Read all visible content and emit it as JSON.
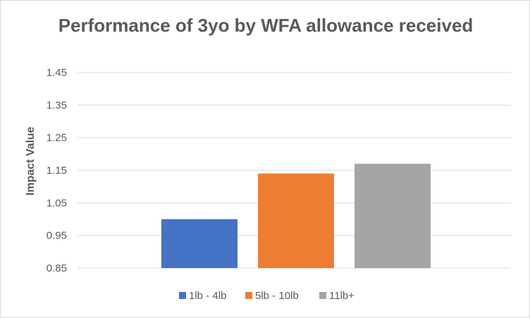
{
  "chart_data": {
    "type": "bar",
    "title": "Performance of 3yo by WFA allowance received",
    "ylabel": "Impact Value",
    "xlabel": "",
    "ylim": [
      0.85,
      1.45
    ],
    "yticks": [
      "1.45",
      "1.35",
      "1.25",
      "1.15",
      "1.05",
      "0.95",
      "0.85"
    ],
    "grid": true,
    "legend_position": "bottom",
    "series": [
      {
        "name": "1lb - 4lb",
        "value": 1.0,
        "color": "#4472c4"
      },
      {
        "name": "5lb - 10lb",
        "value": 1.14,
        "color": "#ed7d31"
      },
      {
        "name": "11lb+",
        "value": 1.17,
        "color": "#a5a5a5"
      }
    ]
  }
}
